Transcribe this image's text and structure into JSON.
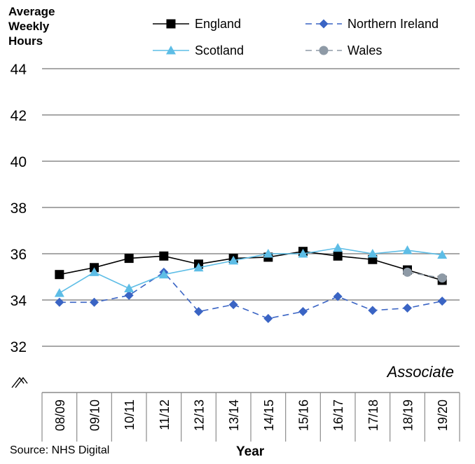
{
  "chart_data": {
    "type": "line",
    "ylabel": "Average\nWeekly\nHours",
    "xlabel": "Year",
    "source": "Source: NHS Digital",
    "annotation": "Associate",
    "ylim": [
      32,
      44
    ],
    "yticks": [
      "44",
      "42",
      "40",
      "38",
      "36",
      "34",
      "32"
    ],
    "y_axis_break": true,
    "grid": true,
    "legend_position": "top",
    "categories": [
      "08/09",
      "09/10",
      "10/11",
      "11/12",
      "12/13",
      "13/14",
      "14/15",
      "15/16",
      "16/17",
      "17/18",
      "18/19",
      "19/20"
    ],
    "series": [
      {
        "name": "England",
        "color": "#000000",
        "marker": "square",
        "dash": "solid",
        "values": [
          35.1,
          35.4,
          35.8,
          35.9,
          35.55,
          35.8,
          35.85,
          36.1,
          35.9,
          35.75,
          35.3,
          34.85
        ]
      },
      {
        "name": "Northern Ireland",
        "color": "#3a64c4",
        "marker": "diamond",
        "dash": "dashed",
        "values": [
          33.9,
          33.9,
          34.2,
          35.2,
          33.5,
          33.8,
          33.2,
          33.5,
          34.15,
          33.55,
          33.65,
          33.95
        ]
      },
      {
        "name": "Scotland",
        "color": "#5dbde6",
        "marker": "triangle",
        "dash": "solid",
        "values": [
          34.3,
          35.2,
          34.5,
          35.1,
          35.4,
          35.7,
          36.0,
          36.0,
          36.25,
          36.0,
          36.15,
          35.95
        ]
      },
      {
        "name": "Wales",
        "color": "#8e9aa6",
        "marker": "circle",
        "dash": "dashed",
        "values": [
          null,
          null,
          null,
          null,
          null,
          null,
          null,
          null,
          null,
          null,
          35.2,
          34.95
        ]
      }
    ]
  }
}
